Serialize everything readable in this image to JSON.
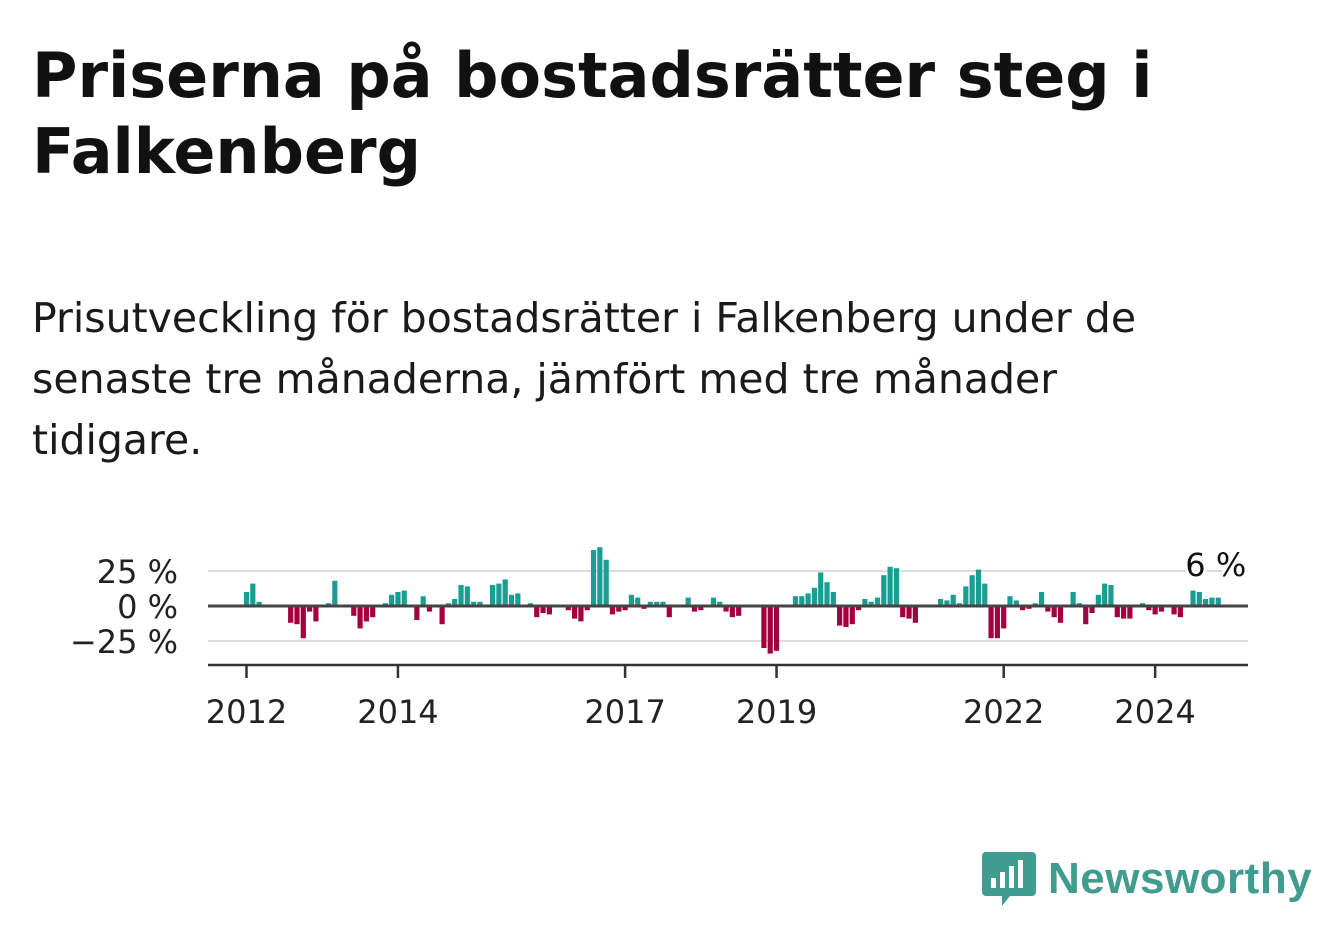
{
  "title": "Priserna på bostadsrätter steg i Falkenberg",
  "subtitle": "Prisutveckling för bostadsrätter i Falkenberg under de senaste tre månaderna, jämfört med tre månader tidigare.",
  "brand": {
    "name": "Newsworthy",
    "color": "#3f9c8f",
    "icon": "newsworthy-logo-icon"
  },
  "colors": {
    "positive": "#1a9e94",
    "negative": "#a3003f",
    "axis": "#333333",
    "grid": "#dddddd"
  },
  "chart_data": {
    "type": "bar",
    "x_start": "2012-01",
    "frequency": "monthly",
    "x_ticks": [
      {
        "date": "2012-01",
        "label": "2012"
      },
      {
        "date": "2014-01",
        "label": "2014"
      },
      {
        "date": "2017-01",
        "label": "2017"
      },
      {
        "date": "2019-01",
        "label": "2019"
      },
      {
        "date": "2022-01",
        "label": "2022"
      },
      {
        "date": "2024-01",
        "label": "2024"
      }
    ],
    "y_ticks": [
      {
        "value": 25,
        "label": "25 %"
      },
      {
        "value": 0,
        "label": "0 %"
      },
      {
        "value": -25,
        "label": "−25 %"
      }
    ],
    "ylim": [
      -40,
      40
    ],
    "grid": true,
    "annotation": {
      "label": "6 %",
      "value": 6
    },
    "values": [
      10,
      16,
      3,
      0,
      0,
      0,
      0,
      -12,
      -13,
      -23,
      -4,
      -11,
      0,
      2,
      18,
      0,
      1,
      -7,
      -16,
      -11,
      -8,
      0,
      2,
      8,
      10,
      11,
      0,
      -10,
      7,
      -4,
      0,
      -13,
      2,
      5,
      15,
      14,
      3,
      3,
      0,
      15,
      16,
      19,
      8,
      9,
      0,
      2,
      -8,
      -5,
      -6,
      0,
      1,
      -3,
      -9,
      -11,
      -3,
      40,
      42,
      33,
      -6,
      -4,
      -3,
      8,
      6,
      -2,
      3,
      3,
      3,
      -8,
      -1,
      0,
      6,
      -4,
      -3,
      0,
      6,
      3,
      -4,
      -8,
      -7,
      0,
      0,
      0,
      -30,
      -34,
      -32,
      0,
      0,
      7,
      7,
      9,
      13,
      24,
      17,
      10,
      -14,
      -15,
      -13,
      -3,
      5,
      3,
      6,
      22,
      28,
      27,
      -8,
      -9,
      -12,
      0,
      0,
      0,
      5,
      4,
      8,
      2,
      14,
      22,
      26,
      16,
      -23,
      -23,
      -16,
      7,
      4,
      -3,
      -2,
      2,
      10,
      -4,
      -8,
      -12,
      0,
      10,
      2,
      -13,
      -5,
      8,
      16,
      15,
      -8,
      -9,
      -9,
      0,
      2,
      -3,
      -6,
      -4,
      0,
      -6,
      -8,
      -1,
      11,
      10,
      5,
      6,
      6
    ]
  }
}
